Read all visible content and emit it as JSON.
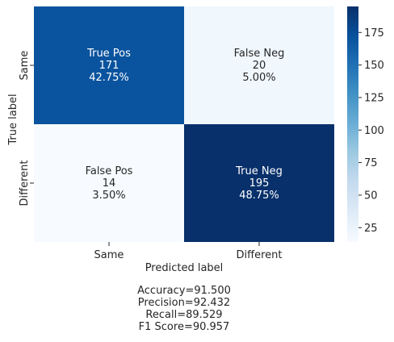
{
  "chart_data": {
    "type": "heatmap",
    "xlabel": "Predicted label",
    "ylabel": "True label",
    "x_categories": [
      "Same",
      "Different"
    ],
    "y_categories": [
      "Same",
      "Different"
    ],
    "cells": [
      {
        "row": 0,
        "col": 0,
        "name": "True Pos",
        "count": 171,
        "percent": "42.75%"
      },
      {
        "row": 0,
        "col": 1,
        "name": "False Neg",
        "count": 20,
        "percent": "5.00%"
      },
      {
        "row": 1,
        "col": 0,
        "name": "False Pos",
        "count": 14,
        "percent": "3.50%"
      },
      {
        "row": 1,
        "col": 1,
        "name": "True Neg",
        "count": 195,
        "percent": "48.75%"
      }
    ],
    "colorbar": {
      "colormap": "Blues",
      "range": [
        14,
        195
      ],
      "ticks": [
        25,
        50,
        75,
        100,
        125,
        150,
        175
      ]
    },
    "annotations": [
      "Accuracy=91.500",
      "Precision=92.432",
      "Recall=89.529",
      "F1 Score=90.957"
    ]
  }
}
